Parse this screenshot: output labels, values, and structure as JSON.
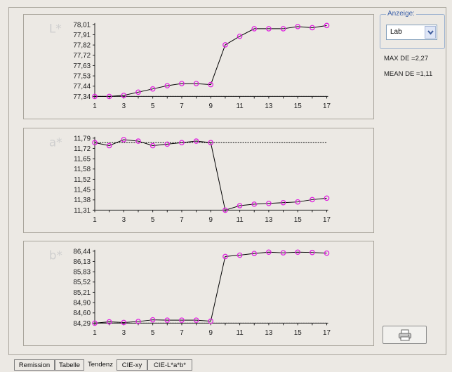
{
  "anzeige": {
    "legend": "Anzeige:",
    "selected": "Lab",
    "icon": "chevron-down-icon"
  },
  "stats": {
    "max_de": "MAX DE =2,27",
    "mean_de": "MEAN DE =1,11"
  },
  "print_button": {
    "icon": "printer-icon",
    "color": "#d9d9d9"
  },
  "tabs": [
    {
      "label": "Remission",
      "active": false
    },
    {
      "label": "Tabelle",
      "active": false
    },
    {
      "label": "Tendenz",
      "active": true
    },
    {
      "label": "CIE-xy",
      "active": false
    },
    {
      "label": "CIE-L*a*b*",
      "active": false
    }
  ],
  "chart_data": [
    {
      "type": "line",
      "axis_name": "L*",
      "x": [
        1,
        2,
        3,
        4,
        5,
        6,
        7,
        8,
        9,
        10,
        11,
        12,
        13,
        14,
        15,
        16,
        17
      ],
      "x_ticks": [
        "1",
        "3",
        "5",
        "7",
        "9",
        "11",
        "13",
        "15",
        "17"
      ],
      "y_ticks": [
        "78,01",
        "77,91",
        "77,82",
        "77,72",
        "77,63",
        "77,53",
        "77,44",
        "77,34"
      ],
      "ylim": [
        77.34,
        78.01
      ],
      "reference": 77.34,
      "values": [
        77.34,
        77.34,
        77.35,
        77.38,
        77.41,
        77.44,
        77.46,
        77.46,
        77.45,
        77.82,
        77.9,
        77.97,
        77.97,
        77.97,
        77.99,
        77.98,
        78.0
      ],
      "line_color": "#000000",
      "marker_color": "#e020e0"
    },
    {
      "type": "line",
      "axis_name": "a*",
      "x": [
        1,
        2,
        3,
        4,
        5,
        6,
        7,
        8,
        9,
        10,
        11,
        12,
        13,
        14,
        15,
        16,
        17
      ],
      "x_ticks": [
        "1",
        "3",
        "5",
        "7",
        "9",
        "11",
        "13",
        "15",
        "17"
      ],
      "y_ticks": [
        "11,79",
        "11,72",
        "11,65",
        "11,58",
        "11,52",
        "11,45",
        "11,38",
        "11,31"
      ],
      "ylim": [
        11.31,
        11.79
      ],
      "reference": 11.76,
      "values": [
        11.76,
        11.74,
        11.78,
        11.77,
        11.74,
        11.75,
        11.76,
        11.77,
        11.76,
        11.31,
        11.34,
        11.35,
        11.355,
        11.36,
        11.365,
        11.38,
        11.39
      ],
      "line_color": "#000000",
      "marker_color": "#e020e0"
    },
    {
      "type": "line",
      "axis_name": "b*",
      "x": [
        1,
        2,
        3,
        4,
        5,
        6,
        7,
        8,
        9,
        10,
        11,
        12,
        13,
        14,
        15,
        16,
        17
      ],
      "x_ticks": [
        "1",
        "3",
        "5",
        "7",
        "9",
        "11",
        "13",
        "15",
        "17"
      ],
      "y_ticks": [
        "86,44",
        "86,13",
        "85,83",
        "85,52",
        "85,21",
        "84,90",
        "84,60",
        "84,29"
      ],
      "ylim": [
        84.29,
        86.44
      ],
      "reference": 84.29,
      "values": [
        84.29,
        84.33,
        84.31,
        84.34,
        84.39,
        84.38,
        84.38,
        84.38,
        84.35,
        86.28,
        86.32,
        86.37,
        86.41,
        86.39,
        86.41,
        86.4,
        86.38
      ],
      "line_color": "#000000",
      "marker_color": "#e020e0"
    }
  ]
}
